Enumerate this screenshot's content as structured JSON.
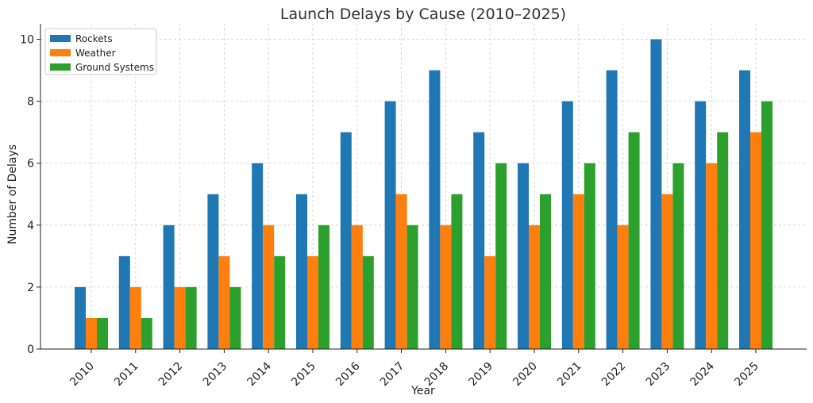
{
  "chart_data": {
    "type": "bar",
    "title": "Launch Delays by Cause (2010–2025)",
    "xlabel": "Year",
    "ylabel": "Number of Delays",
    "ylim": [
      0,
      10.5
    ],
    "yticks": [
      "0",
      "2",
      "4",
      "6",
      "8",
      "10"
    ],
    "grid": true,
    "legend_position": "top-left",
    "categories": [
      "2010",
      "2011",
      "2012",
      "2013",
      "2014",
      "2015",
      "2016",
      "2017",
      "2018",
      "2019",
      "2020",
      "2021",
      "2022",
      "2023",
      "2024",
      "2025"
    ],
    "series": [
      {
        "name": "Rockets",
        "color": "#1f77b4",
        "values": [
          2,
          3,
          4,
          5,
          6,
          5,
          7,
          8,
          9,
          7,
          6,
          8,
          9,
          10,
          8,
          9
        ]
      },
      {
        "name": "Weather",
        "color": "#ff7f0e",
        "values": [
          1,
          2,
          2,
          3,
          4,
          3,
          4,
          5,
          4,
          3,
          4,
          5,
          4,
          5,
          6,
          7
        ]
      },
      {
        "name": "Ground Systems",
        "color": "#2ca02c",
        "values": [
          1,
          1,
          2,
          2,
          3,
          4,
          3,
          4,
          5,
          6,
          5,
          6,
          7,
          6,
          7,
          8
        ]
      }
    ]
  }
}
